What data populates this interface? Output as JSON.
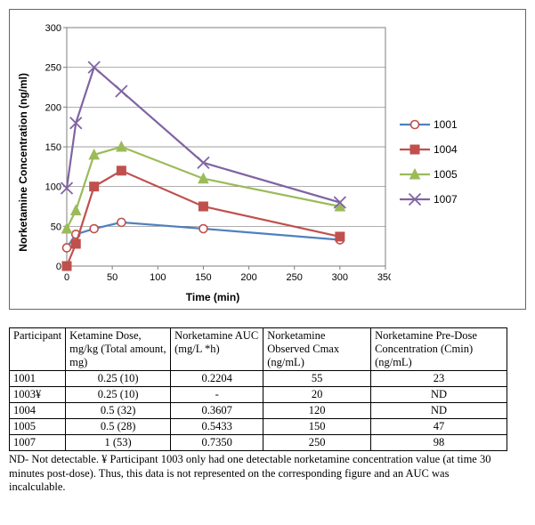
{
  "chart": {
    "type": "line",
    "ylabel": "Norketamine Concentration (ng/ml)",
    "xlabel": "Time (min)",
    "title_fontsize": 12,
    "label_fontsize": 12,
    "xlim": [
      0,
      350
    ],
    "ylim": [
      0,
      300
    ],
    "xtick_step": 50,
    "ytick_step": 50,
    "background_color": "#ffffff",
    "grid_color": "#7f7f7f",
    "border_color": "#7f7f7f",
    "tick_fontsize": 11,
    "line_width": 2.2,
    "marker_size": 5,
    "series": [
      {
        "id": "1001",
        "color": "#4f81bd",
        "marker": "circle-open",
        "marker_fill": "#ffffff",
        "marker_stroke": "#c0504d",
        "x": [
          0,
          10,
          30,
          60,
          150,
          300
        ],
        "y": [
          23,
          40,
          47,
          55,
          47,
          33
        ]
      },
      {
        "id": "1004",
        "color": "#c0504d",
        "marker": "square",
        "marker_fill": "#c0504d",
        "marker_stroke": "#c0504d",
        "x": [
          0,
          10,
          30,
          60,
          150,
          300
        ],
        "y": [
          0,
          28,
          100,
          120,
          75,
          37
        ]
      },
      {
        "id": "1005",
        "color": "#9bbb59",
        "marker": "triangle",
        "marker_fill": "#9bbb59",
        "marker_stroke": "#9bbb59",
        "x": [
          0,
          10,
          30,
          60,
          150,
          300
        ],
        "y": [
          47,
          70,
          140,
          150,
          110,
          75
        ]
      },
      {
        "id": "1007",
        "color": "#8064a2",
        "marker": "x",
        "marker_fill": "none",
        "marker_stroke": "#8064a2",
        "x": [
          0,
          10,
          30,
          60,
          150,
          300
        ],
        "y": [
          98,
          180,
          250,
          220,
          130,
          80
        ]
      }
    ]
  },
  "legend": {
    "items": [
      "1001",
      "1004",
      "1005",
      "1007"
    ]
  },
  "table": {
    "columns": [
      "Participant",
      "Ketamine Dose, mg/kg (Total amount, mg)",
      "Norketamine AUC (mg/L *h)",
      "Norketamine Observed Cmax (ng/mL)",
      "Norketamine Pre-Dose Concentration (Cmin) (ng/mL)"
    ],
    "rows": [
      [
        "1001",
        "0.25 (10)",
        "0.2204",
        "55",
        "23"
      ],
      [
        "1003¥",
        "0.25 (10)",
        "-",
        "20",
        "ND"
      ],
      [
        "1004",
        "0.5 (32)",
        "0.3607",
        "120",
        "ND"
      ],
      [
        "1005",
        "0.5 (28)",
        "0.5433",
        "150",
        "47"
      ],
      [
        "1007",
        "1 (53)",
        "0.7350",
        "250",
        "98"
      ]
    ],
    "col_align": [
      "left",
      "center",
      "center",
      "center",
      "center"
    ]
  },
  "footnote": "ND- Not detectable. ¥ Participant 1003 only had one detectable norketamine concentration value (at time 30 minutes post-dose).  Thus, this data is not represented on the corresponding figure and an AUC was incalculable."
}
